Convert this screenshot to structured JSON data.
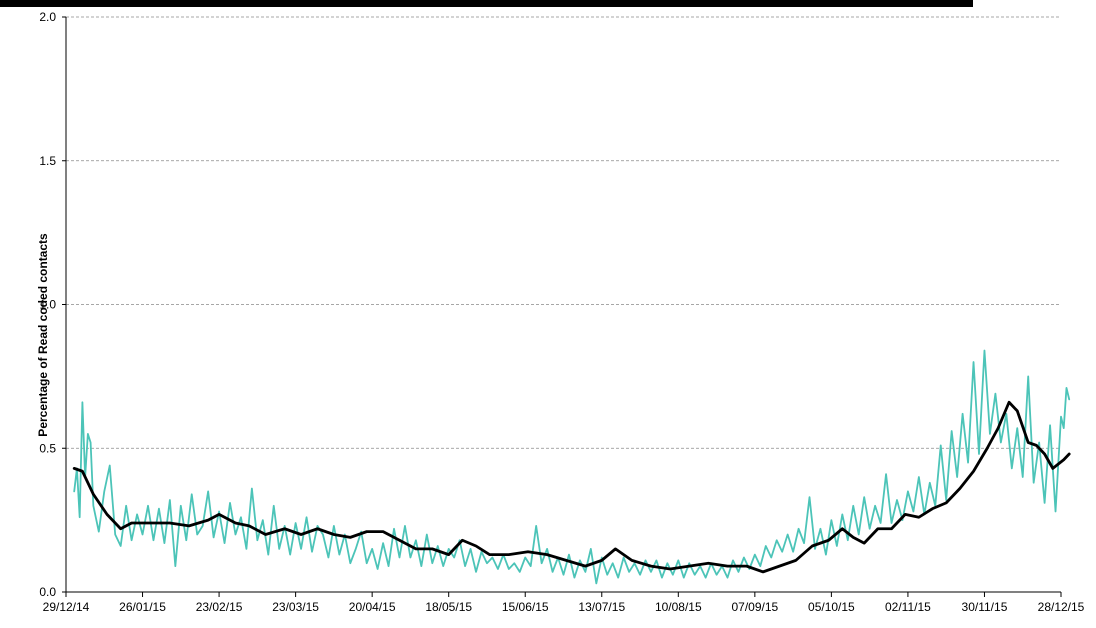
{
  "chart_data": {
    "type": "line",
    "title": "",
    "xlabel": "",
    "ylabel": "Percentage of Read coded contacts",
    "ylim": [
      0,
      2
    ],
    "yticks": [
      "0.0",
      "0.5",
      "1.0",
      "1.5",
      "2.0"
    ],
    "xticks": [
      "29/12/14",
      "26/01/15",
      "23/02/15",
      "23/03/15",
      "20/04/15",
      "18/05/15",
      "15/06/15",
      "13/07/15",
      "10/08/15",
      "07/09/15",
      "05/10/15",
      "02/11/15",
      "30/11/15",
      "28/12/15"
    ],
    "grid": "horizontal dashed",
    "legend": "none",
    "series": [
      {
        "color": "#4cc4b8",
        "points": [
          [
            "2015-01-01",
            0.35
          ],
          [
            "2015-01-02",
            0.43
          ],
          [
            "2015-01-03",
            0.26
          ],
          [
            "2015-01-04",
            0.66
          ],
          [
            "2015-01-05",
            0.4
          ],
          [
            "2015-01-06",
            0.55
          ],
          [
            "2015-01-07",
            0.52
          ],
          [
            "2015-01-08",
            0.3
          ],
          [
            "2015-01-10",
            0.21
          ],
          [
            "2015-01-12",
            0.35
          ],
          [
            "2015-01-14",
            0.44
          ],
          [
            "2015-01-16",
            0.2
          ],
          [
            "2015-01-18",
            0.16
          ],
          [
            "2015-01-20",
            0.3
          ],
          [
            "2015-01-22",
            0.18
          ],
          [
            "2015-01-24",
            0.27
          ],
          [
            "2015-01-26",
            0.2
          ],
          [
            "2015-01-28",
            0.3
          ],
          [
            "2015-01-30",
            0.18
          ],
          [
            "2015-02-01",
            0.29
          ],
          [
            "2015-02-03",
            0.17
          ],
          [
            "2015-02-05",
            0.32
          ],
          [
            "2015-02-07",
            0.09
          ],
          [
            "2015-02-09",
            0.3
          ],
          [
            "2015-02-11",
            0.18
          ],
          [
            "2015-02-13",
            0.34
          ],
          [
            "2015-02-15",
            0.2
          ],
          [
            "2015-02-17",
            0.23
          ],
          [
            "2015-02-19",
            0.35
          ],
          [
            "2015-02-21",
            0.19
          ],
          [
            "2015-02-23",
            0.28
          ],
          [
            "2015-02-25",
            0.17
          ],
          [
            "2015-02-27",
            0.31
          ],
          [
            "2015-03-01",
            0.2
          ],
          [
            "2015-03-03",
            0.26
          ],
          [
            "2015-03-05",
            0.15
          ],
          [
            "2015-03-07",
            0.36
          ],
          [
            "2015-03-09",
            0.18
          ],
          [
            "2015-03-11",
            0.25
          ],
          [
            "2015-03-13",
            0.13
          ],
          [
            "2015-03-15",
            0.3
          ],
          [
            "2015-03-17",
            0.15
          ],
          [
            "2015-03-19",
            0.23
          ],
          [
            "2015-03-21",
            0.13
          ],
          [
            "2015-03-23",
            0.24
          ],
          [
            "2015-03-25",
            0.15
          ],
          [
            "2015-03-27",
            0.26
          ],
          [
            "2015-03-29",
            0.14
          ],
          [
            "2015-03-31",
            0.23
          ],
          [
            "2015-04-02",
            0.2
          ],
          [
            "2015-04-04",
            0.12
          ],
          [
            "2015-04-06",
            0.23
          ],
          [
            "2015-04-08",
            0.13
          ],
          [
            "2015-04-10",
            0.2
          ],
          [
            "2015-04-12",
            0.1
          ],
          [
            "2015-04-14",
            0.15
          ],
          [
            "2015-04-16",
            0.21
          ],
          [
            "2015-04-18",
            0.1
          ],
          [
            "2015-04-20",
            0.15
          ],
          [
            "2015-04-22",
            0.08
          ],
          [
            "2015-04-24",
            0.17
          ],
          [
            "2015-04-26",
            0.09
          ],
          [
            "2015-04-28",
            0.22
          ],
          [
            "2015-04-30",
            0.12
          ],
          [
            "2015-05-02",
            0.23
          ],
          [
            "2015-05-04",
            0.12
          ],
          [
            "2015-05-06",
            0.18
          ],
          [
            "2015-05-08",
            0.09
          ],
          [
            "2015-05-10",
            0.2
          ],
          [
            "2015-05-12",
            0.1
          ],
          [
            "2015-05-14",
            0.16
          ],
          [
            "2015-05-16",
            0.09
          ],
          [
            "2015-05-18",
            0.15
          ],
          [
            "2015-05-20",
            0.12
          ],
          [
            "2015-05-22",
            0.18
          ],
          [
            "2015-05-24",
            0.09
          ],
          [
            "2015-05-26",
            0.15
          ],
          [
            "2015-05-28",
            0.07
          ],
          [
            "2015-05-30",
            0.14
          ],
          [
            "2015-06-01",
            0.1
          ],
          [
            "2015-06-03",
            0.12
          ],
          [
            "2015-06-05",
            0.08
          ],
          [
            "2015-06-07",
            0.13
          ],
          [
            "2015-06-09",
            0.08
          ],
          [
            "2015-06-11",
            0.1
          ],
          [
            "2015-06-13",
            0.07
          ],
          [
            "2015-06-15",
            0.12
          ],
          [
            "2015-06-17",
            0.09
          ],
          [
            "2015-06-19",
            0.23
          ],
          [
            "2015-06-21",
            0.1
          ],
          [
            "2015-06-23",
            0.15
          ],
          [
            "2015-06-25",
            0.07
          ],
          [
            "2015-06-27",
            0.12
          ],
          [
            "2015-06-29",
            0.06
          ],
          [
            "2015-07-01",
            0.13
          ],
          [
            "2015-07-03",
            0.05
          ],
          [
            "2015-07-05",
            0.11
          ],
          [
            "2015-07-07",
            0.07
          ],
          [
            "2015-07-09",
            0.15
          ],
          [
            "2015-07-11",
            0.03
          ],
          [
            "2015-07-13",
            0.12
          ],
          [
            "2015-07-15",
            0.06
          ],
          [
            "2015-07-17",
            0.1
          ],
          [
            "2015-07-19",
            0.05
          ],
          [
            "2015-07-21",
            0.12
          ],
          [
            "2015-07-23",
            0.07
          ],
          [
            "2015-07-25",
            0.1
          ],
          [
            "2015-07-27",
            0.06
          ],
          [
            "2015-07-29",
            0.11
          ],
          [
            "2015-07-31",
            0.07
          ],
          [
            "2015-08-02",
            0.11
          ],
          [
            "2015-08-04",
            0.05
          ],
          [
            "2015-08-06",
            0.1
          ],
          [
            "2015-08-08",
            0.06
          ],
          [
            "2015-08-10",
            0.11
          ],
          [
            "2015-08-12",
            0.05
          ],
          [
            "2015-08-14",
            0.1
          ],
          [
            "2015-08-16",
            0.06
          ],
          [
            "2015-08-18",
            0.09
          ],
          [
            "2015-08-20",
            0.05
          ],
          [
            "2015-08-22",
            0.1
          ],
          [
            "2015-08-24",
            0.06
          ],
          [
            "2015-08-26",
            0.09
          ],
          [
            "2015-08-28",
            0.05
          ],
          [
            "2015-08-30",
            0.11
          ],
          [
            "2015-09-01",
            0.07
          ],
          [
            "2015-09-03",
            0.12
          ],
          [
            "2015-09-05",
            0.08
          ],
          [
            "2015-09-07",
            0.13
          ],
          [
            "2015-09-09",
            0.09
          ],
          [
            "2015-09-11",
            0.16
          ],
          [
            "2015-09-13",
            0.12
          ],
          [
            "2015-09-15",
            0.18
          ],
          [
            "2015-09-17",
            0.14
          ],
          [
            "2015-09-19",
            0.2
          ],
          [
            "2015-09-21",
            0.14
          ],
          [
            "2015-09-23",
            0.22
          ],
          [
            "2015-09-25",
            0.17
          ],
          [
            "2015-09-27",
            0.33
          ],
          [
            "2015-09-29",
            0.15
          ],
          [
            "2015-10-01",
            0.22
          ],
          [
            "2015-10-03",
            0.13
          ],
          [
            "2015-10-05",
            0.25
          ],
          [
            "2015-10-07",
            0.16
          ],
          [
            "2015-10-09",
            0.27
          ],
          [
            "2015-10-11",
            0.18
          ],
          [
            "2015-10-13",
            0.3
          ],
          [
            "2015-10-15",
            0.2
          ],
          [
            "2015-10-17",
            0.33
          ],
          [
            "2015-10-19",
            0.22
          ],
          [
            "2015-10-21",
            0.3
          ],
          [
            "2015-10-23",
            0.24
          ],
          [
            "2015-10-25",
            0.41
          ],
          [
            "2015-10-27",
            0.24
          ],
          [
            "2015-10-29",
            0.32
          ],
          [
            "2015-10-31",
            0.25
          ],
          [
            "2015-11-02",
            0.35
          ],
          [
            "2015-11-04",
            0.28
          ],
          [
            "2015-11-06",
            0.4
          ],
          [
            "2015-11-08",
            0.27
          ],
          [
            "2015-11-10",
            0.38
          ],
          [
            "2015-11-12",
            0.3
          ],
          [
            "2015-11-14",
            0.51
          ],
          [
            "2015-11-16",
            0.32
          ],
          [
            "2015-11-18",
            0.56
          ],
          [
            "2015-11-20",
            0.4
          ],
          [
            "2015-11-22",
            0.62
          ],
          [
            "2015-11-24",
            0.45
          ],
          [
            "2015-11-26",
            0.8
          ],
          [
            "2015-11-28",
            0.48
          ],
          [
            "2015-11-30",
            0.84
          ],
          [
            "2015-12-02",
            0.55
          ],
          [
            "2015-12-04",
            0.69
          ],
          [
            "2015-12-06",
            0.52
          ],
          [
            "2015-12-08",
            0.62
          ],
          [
            "2015-12-10",
            0.43
          ],
          [
            "2015-12-12",
            0.57
          ],
          [
            "2015-12-14",
            0.4
          ],
          [
            "2015-12-16",
            0.75
          ],
          [
            "2015-12-18",
            0.38
          ],
          [
            "2015-12-20",
            0.52
          ],
          [
            "2015-12-22",
            0.31
          ],
          [
            "2015-12-24",
            0.58
          ],
          [
            "2015-12-26",
            0.28
          ],
          [
            "2015-12-28",
            0.61
          ],
          [
            "2015-12-29",
            0.57
          ],
          [
            "2015-12-30",
            0.71
          ],
          [
            "2015-12-31",
            0.67
          ]
        ]
      },
      {
        "color": "#000000",
        "points": [
          [
            "2015-01-01",
            0.43
          ],
          [
            "2015-01-04",
            0.42
          ],
          [
            "2015-01-08",
            0.34
          ],
          [
            "2015-01-13",
            0.27
          ],
          [
            "2015-01-18",
            0.22
          ],
          [
            "2015-01-22",
            0.24
          ],
          [
            "2015-01-29",
            0.24
          ],
          [
            "2015-02-05",
            0.24
          ],
          [
            "2015-02-12",
            0.23
          ],
          [
            "2015-02-19",
            0.25
          ],
          [
            "2015-02-23",
            0.27
          ],
          [
            "2015-03-01",
            0.24
          ],
          [
            "2015-03-06",
            0.23
          ],
          [
            "2015-03-12",
            0.2
          ],
          [
            "2015-03-19",
            0.22
          ],
          [
            "2015-03-25",
            0.2
          ],
          [
            "2015-03-31",
            0.22
          ],
          [
            "2015-04-06",
            0.2
          ],
          [
            "2015-04-12",
            0.19
          ],
          [
            "2015-04-18",
            0.21
          ],
          [
            "2015-04-24",
            0.21
          ],
          [
            "2015-04-30",
            0.18
          ],
          [
            "2015-05-06",
            0.15
          ],
          [
            "2015-05-12",
            0.15
          ],
          [
            "2015-05-18",
            0.13
          ],
          [
            "2015-05-23",
            0.18
          ],
          [
            "2015-05-28",
            0.16
          ],
          [
            "2015-06-02",
            0.13
          ],
          [
            "2015-06-09",
            0.13
          ],
          [
            "2015-06-16",
            0.14
          ],
          [
            "2015-06-23",
            0.13
          ],
          [
            "2015-06-30",
            0.11
          ],
          [
            "2015-07-07",
            0.09
          ],
          [
            "2015-07-13",
            0.11
          ],
          [
            "2015-07-18",
            0.15
          ],
          [
            "2015-07-24",
            0.11
          ],
          [
            "2015-07-31",
            0.09
          ],
          [
            "2015-08-07",
            0.08
          ],
          [
            "2015-08-14",
            0.09
          ],
          [
            "2015-08-21",
            0.1
          ],
          [
            "2015-08-28",
            0.09
          ],
          [
            "2015-09-04",
            0.09
          ],
          [
            "2015-09-10",
            0.07
          ],
          [
            "2015-09-16",
            0.09
          ],
          [
            "2015-09-22",
            0.11
          ],
          [
            "2015-09-28",
            0.16
          ],
          [
            "2015-10-04",
            0.18
          ],
          [
            "2015-10-09",
            0.22
          ],
          [
            "2015-10-13",
            0.19
          ],
          [
            "2015-10-17",
            0.17
          ],
          [
            "2015-10-22",
            0.22
          ],
          [
            "2015-10-27",
            0.22
          ],
          [
            "2015-11-01",
            0.27
          ],
          [
            "2015-11-06",
            0.26
          ],
          [
            "2015-11-11",
            0.29
          ],
          [
            "2015-11-16",
            0.31
          ],
          [
            "2015-11-21",
            0.36
          ],
          [
            "2015-11-26",
            0.42
          ],
          [
            "2015-12-01",
            0.5
          ],
          [
            "2015-12-05",
            0.57
          ],
          [
            "2015-12-09",
            0.66
          ],
          [
            "2015-12-12",
            0.63
          ],
          [
            "2015-12-16",
            0.52
          ],
          [
            "2015-12-19",
            0.51
          ],
          [
            "2015-12-22",
            0.48
          ],
          [
            "2015-12-25",
            0.43
          ],
          [
            "2015-12-29",
            0.46
          ],
          [
            "2015-12-31",
            0.48
          ]
        ]
      }
    ]
  }
}
